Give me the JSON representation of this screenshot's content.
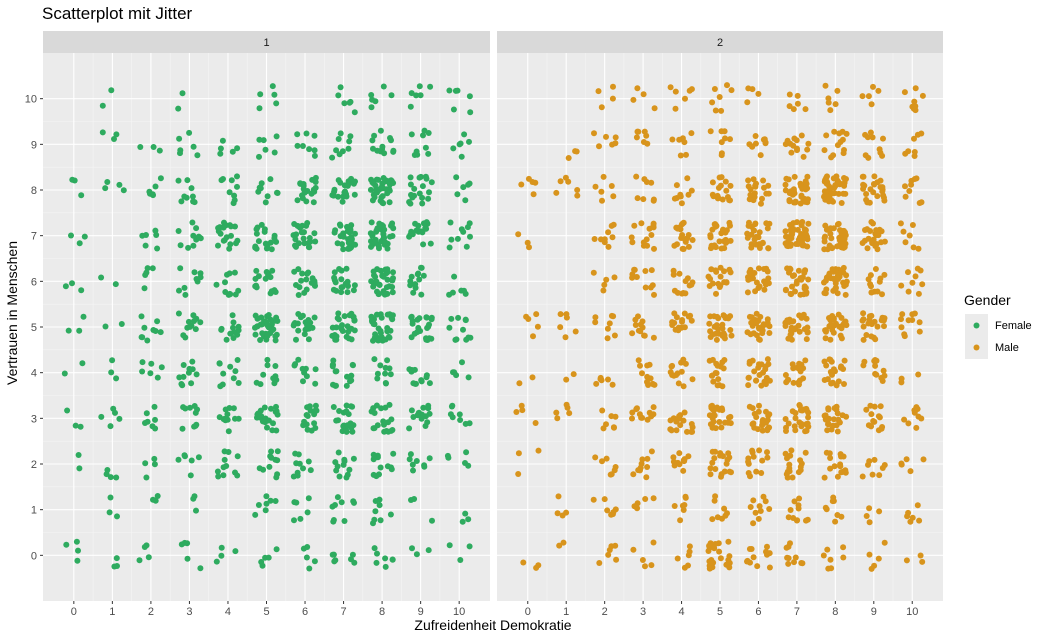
{
  "chart_data": {
    "type": "scatter",
    "title": "Scatterplot mit Jitter",
    "xlabel": "Zufreidenheit Demokratie",
    "ylabel": "Vertrauen in Menschen",
    "xlim": [
      -0.8,
      10.8
    ],
    "ylim": [
      -1,
      11
    ],
    "x_ticks": [
      0,
      1,
      2,
      3,
      4,
      5,
      6,
      7,
      8,
      9,
      10
    ],
    "y_ticks": [
      0,
      1,
      2,
      3,
      4,
      5,
      6,
      7,
      8,
      9,
      10
    ],
    "grid": true,
    "jitter": {
      "x": 0.3,
      "y": 0.3
    },
    "legend": {
      "title": "Gender",
      "placement": "right",
      "entries": [
        {
          "label": "Female",
          "color": "#2eab5f"
        },
        {
          "label": "Male",
          "color": "#d8941c"
        }
      ]
    },
    "panels": [
      {
        "label": "1",
        "color": "#2eab5f",
        "series": "Female",
        "points": [
          [
            0,
            0,
            4
          ],
          [
            0,
            1,
            0
          ],
          [
            0,
            2,
            2
          ],
          [
            0,
            3,
            3
          ],
          [
            0,
            4,
            2
          ],
          [
            0,
            5,
            3
          ],
          [
            0,
            6,
            3
          ],
          [
            0,
            7,
            3
          ],
          [
            0,
            8,
            3
          ],
          [
            0,
            9,
            0
          ],
          [
            0,
            10,
            0
          ],
          [
            1,
            0,
            3
          ],
          [
            1,
            1,
            3
          ],
          [
            1,
            2,
            4
          ],
          [
            1,
            3,
            5
          ],
          [
            1,
            4,
            3
          ],
          [
            1,
            5,
            2
          ],
          [
            1,
            6,
            2
          ],
          [
            1,
            7,
            0
          ],
          [
            1,
            8,
            4
          ],
          [
            1,
            9,
            3
          ],
          [
            1,
            10,
            2
          ],
          [
            2,
            0,
            4
          ],
          [
            2,
            1,
            3
          ],
          [
            2,
            2,
            4
          ],
          [
            2,
            3,
            7
          ],
          [
            2,
            4,
            6
          ],
          [
            2,
            5,
            9
          ],
          [
            2,
            6,
            5
          ],
          [
            2,
            7,
            6
          ],
          [
            2,
            8,
            6
          ],
          [
            2,
            9,
            3
          ],
          [
            2,
            10,
            0
          ],
          [
            3,
            0,
            5
          ],
          [
            3,
            1,
            3
          ],
          [
            3,
            2,
            6
          ],
          [
            3,
            3,
            10
          ],
          [
            3,
            4,
            11
          ],
          [
            3,
            5,
            12
          ],
          [
            3,
            6,
            9
          ],
          [
            3,
            7,
            11
          ],
          [
            3,
            8,
            9
          ],
          [
            3,
            9,
            6
          ],
          [
            3,
            10,
            2
          ],
          [
            4,
            0,
            4
          ],
          [
            4,
            1,
            0
          ],
          [
            4,
            2,
            11
          ],
          [
            4,
            3,
            12
          ],
          [
            4,
            4,
            10
          ],
          [
            4,
            5,
            12
          ],
          [
            4,
            6,
            11
          ],
          [
            4,
            7,
            19
          ],
          [
            4,
            8,
            9
          ],
          [
            4,
            9,
            5
          ],
          [
            4,
            10,
            0
          ],
          [
            5,
            0,
            5
          ],
          [
            5,
            1,
            7
          ],
          [
            5,
            2,
            11
          ],
          [
            5,
            3,
            20
          ],
          [
            5,
            4,
            10
          ],
          [
            5,
            5,
            34
          ],
          [
            5,
            6,
            16
          ],
          [
            5,
            7,
            19
          ],
          [
            5,
            8,
            9
          ],
          [
            5,
            9,
            6
          ],
          [
            5,
            10,
            5
          ],
          [
            6,
            0,
            5
          ],
          [
            6,
            1,
            6
          ],
          [
            6,
            2,
            10
          ],
          [
            6,
            3,
            17
          ],
          [
            6,
            4,
            10
          ],
          [
            6,
            5,
            22
          ],
          [
            6,
            6,
            18
          ],
          [
            6,
            7,
            24
          ],
          [
            6,
            8,
            19
          ],
          [
            6,
            9,
            8
          ],
          [
            6,
            10,
            0
          ],
          [
            7,
            0,
            7
          ],
          [
            7,
            1,
            9
          ],
          [
            7,
            2,
            12
          ],
          [
            7,
            3,
            20
          ],
          [
            7,
            4,
            16
          ],
          [
            7,
            5,
            28
          ],
          [
            7,
            6,
            19
          ],
          [
            7,
            7,
            33
          ],
          [
            7,
            8,
            23
          ],
          [
            7,
            9,
            9
          ],
          [
            7,
            10,
            6
          ],
          [
            8,
            0,
            7
          ],
          [
            8,
            1,
            8
          ],
          [
            8,
            2,
            13
          ],
          [
            8,
            3,
            19
          ],
          [
            8,
            4,
            11
          ],
          [
            8,
            5,
            31
          ],
          [
            8,
            6,
            32
          ],
          [
            8,
            7,
            37
          ],
          [
            8,
            8,
            41
          ],
          [
            8,
            9,
            13
          ],
          [
            8,
            10,
            6
          ],
          [
            9,
            0,
            3
          ],
          [
            9,
            1,
            3
          ],
          [
            9,
            2,
            8
          ],
          [
            9,
            3,
            15
          ],
          [
            9,
            4,
            12
          ],
          [
            9,
            5,
            23
          ],
          [
            9,
            6,
            13
          ],
          [
            9,
            7,
            19
          ],
          [
            9,
            8,
            19
          ],
          [
            9,
            9,
            9
          ],
          [
            9,
            10,
            6
          ],
          [
            10,
            0,
            3
          ],
          [
            10,
            1,
            3
          ],
          [
            10,
            2,
            5
          ],
          [
            10,
            3,
            8
          ],
          [
            10,
            4,
            5
          ],
          [
            10,
            5,
            11
          ],
          [
            10,
            6,
            6
          ],
          [
            10,
            7,
            10
          ],
          [
            10,
            8,
            6
          ],
          [
            10,
            9,
            6
          ],
          [
            10,
            10,
            6
          ]
        ]
      },
      {
        "label": "2",
        "color": "#d8941c",
        "series": "Male",
        "points": [
          [
            0,
            0,
            3
          ],
          [
            0,
            1,
            0
          ],
          [
            0,
            2,
            3
          ],
          [
            0,
            3,
            4
          ],
          [
            0,
            4,
            2
          ],
          [
            0,
            5,
            5
          ],
          [
            0,
            6,
            0
          ],
          [
            0,
            7,
            3
          ],
          [
            0,
            8,
            5
          ],
          [
            0,
            9,
            0
          ],
          [
            0,
            10,
            0
          ],
          [
            1,
            0,
            2
          ],
          [
            1,
            1,
            4
          ],
          [
            1,
            2,
            0
          ],
          [
            1,
            3,
            5
          ],
          [
            1,
            4,
            2
          ],
          [
            1,
            5,
            6
          ],
          [
            1,
            6,
            0
          ],
          [
            1,
            7,
            0
          ],
          [
            1,
            8,
            6
          ],
          [
            1,
            9,
            3
          ],
          [
            1,
            10,
            0
          ],
          [
            2,
            0,
            6
          ],
          [
            2,
            1,
            7
          ],
          [
            2,
            2,
            7
          ],
          [
            2,
            3,
            7
          ],
          [
            2,
            4,
            6
          ],
          [
            2,
            5,
            8
          ],
          [
            2,
            6,
            5
          ],
          [
            2,
            7,
            9
          ],
          [
            2,
            8,
            6
          ],
          [
            2,
            9,
            6
          ],
          [
            2,
            10,
            4
          ],
          [
            3,
            0,
            5
          ],
          [
            3,
            1,
            5
          ],
          [
            3,
            2,
            10
          ],
          [
            3,
            3,
            12
          ],
          [
            3,
            4,
            12
          ],
          [
            3,
            5,
            12
          ],
          [
            3,
            6,
            11
          ],
          [
            3,
            7,
            14
          ],
          [
            3,
            8,
            8
          ],
          [
            3,
            9,
            7
          ],
          [
            3,
            10,
            4
          ],
          [
            4,
            0,
            6
          ],
          [
            4,
            1,
            7
          ],
          [
            4,
            2,
            11
          ],
          [
            4,
            3,
            17
          ],
          [
            4,
            4,
            14
          ],
          [
            4,
            5,
            16
          ],
          [
            4,
            6,
            13
          ],
          [
            4,
            7,
            21
          ],
          [
            4,
            8,
            9
          ],
          [
            4,
            9,
            7
          ],
          [
            4,
            10,
            6
          ],
          [
            5,
            0,
            24
          ],
          [
            5,
            1,
            8
          ],
          [
            5,
            2,
            19
          ],
          [
            5,
            3,
            25
          ],
          [
            5,
            4,
            17
          ],
          [
            5,
            5,
            28
          ],
          [
            5,
            6,
            19
          ],
          [
            5,
            7,
            29
          ],
          [
            5,
            8,
            17
          ],
          [
            5,
            9,
            8
          ],
          [
            5,
            10,
            7
          ],
          [
            6,
            0,
            12
          ],
          [
            6,
            1,
            10
          ],
          [
            6,
            2,
            14
          ],
          [
            6,
            3,
            22
          ],
          [
            6,
            4,
            23
          ],
          [
            6,
            5,
            28
          ],
          [
            6,
            6,
            22
          ],
          [
            6,
            7,
            27
          ],
          [
            6,
            8,
            19
          ],
          [
            6,
            9,
            10
          ],
          [
            6,
            10,
            4
          ],
          [
            7,
            0,
            10
          ],
          [
            7,
            1,
            11
          ],
          [
            7,
            2,
            17
          ],
          [
            7,
            3,
            27
          ],
          [
            7,
            4,
            21
          ],
          [
            7,
            5,
            28
          ],
          [
            7,
            6,
            30
          ],
          [
            7,
            7,
            45
          ],
          [
            7,
            8,
            37
          ],
          [
            7,
            9,
            13
          ],
          [
            7,
            10,
            6
          ],
          [
            8,
            0,
            7
          ],
          [
            8,
            1,
            8
          ],
          [
            8,
            2,
            16
          ],
          [
            8,
            3,
            24
          ],
          [
            8,
            4,
            21
          ],
          [
            8,
            5,
            29
          ],
          [
            8,
            6,
            34
          ],
          [
            8,
            7,
            41
          ],
          [
            8,
            8,
            45
          ],
          [
            8,
            9,
            13
          ],
          [
            8,
            10,
            6
          ],
          [
            9,
            0,
            5
          ],
          [
            9,
            1,
            4
          ],
          [
            9,
            2,
            8
          ],
          [
            9,
            3,
            14
          ],
          [
            9,
            4,
            12
          ],
          [
            9,
            5,
            22
          ],
          [
            9,
            6,
            13
          ],
          [
            9,
            7,
            24
          ],
          [
            9,
            8,
            24
          ],
          [
            9,
            9,
            10
          ],
          [
            9,
            10,
            5
          ],
          [
            10,
            0,
            3
          ],
          [
            10,
            1,
            6
          ],
          [
            10,
            2,
            5
          ],
          [
            10,
            3,
            9
          ],
          [
            10,
            4,
            3
          ],
          [
            10,
            5,
            11
          ],
          [
            10,
            6,
            9
          ],
          [
            10,
            7,
            7
          ],
          [
            10,
            8,
            9
          ],
          [
            10,
            9,
            7
          ],
          [
            10,
            10,
            8
          ]
        ]
      }
    ]
  }
}
